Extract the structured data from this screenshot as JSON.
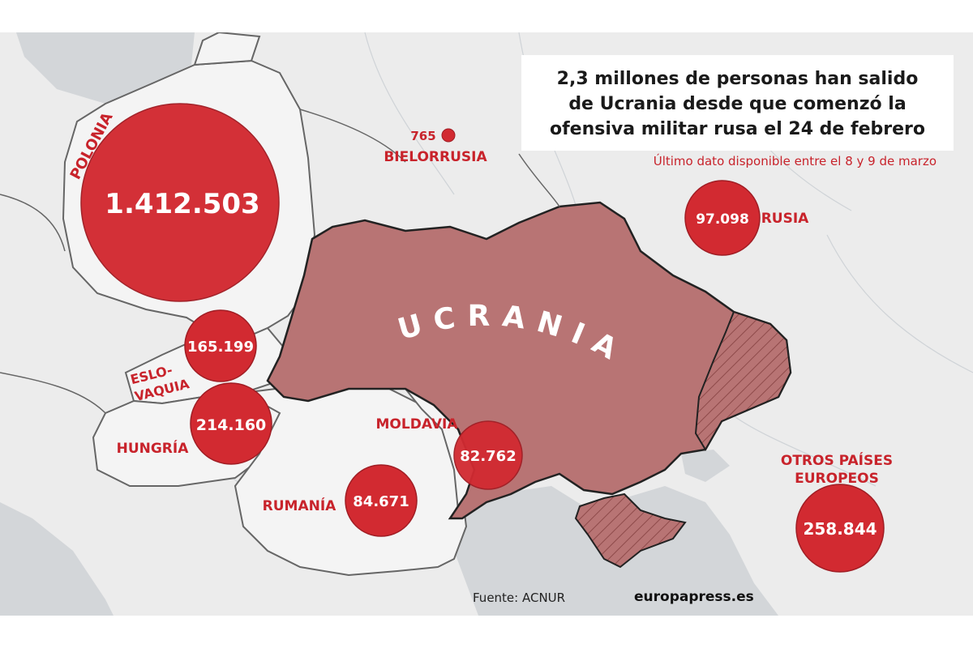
{
  "title": "2,3 millones de personas han salido de Ucrania desde que comenzó la ofensiva militar rusa el 24 de febrero",
  "title_lines": [
    "2,3 millones de personas han salido",
    "de Ucrania desde que comenzó la",
    "ofensiva militar rusa el 24 de febrero"
  ],
  "subtitle": "Último dato disponible entre el 8 y 9 de marzo",
  "source": "Fuente: ACNUR",
  "brand": "europapress.es",
  "center_label": "UCRANIA",
  "colors": {
    "accent": "#c8232b",
    "ukraine_fill": "#b87474",
    "land": "#eeeeee",
    "neighbor_land": "#f6f6f6",
    "water": "#d3d6d9"
  },
  "countries": [
    {
      "id": "polonia",
      "name": "POLONIA",
      "refugees": 1412503,
      "value_label": "1.412.503"
    },
    {
      "id": "eslovaquia",
      "name_lines": [
        "ESLO-",
        "VAQUIA"
      ],
      "refugees": 165199,
      "value_label": "165.199"
    },
    {
      "id": "hungria",
      "name": "HUNGRÍA",
      "refugees": 214160,
      "value_label": "214.160"
    },
    {
      "id": "rumania",
      "name": "RUMANÍA",
      "refugees": 84671,
      "value_label": "84.671"
    },
    {
      "id": "moldavia",
      "name": "MOLDAVIA",
      "refugees": 82762,
      "value_label": "82.762"
    },
    {
      "id": "bielorrusia",
      "name": "BIELORRUSIA",
      "refugees": 765,
      "value_label": "765"
    },
    {
      "id": "rusia",
      "name": "RUSIA",
      "refugees": 97098,
      "value_label": "97.098"
    },
    {
      "id": "otros",
      "name_lines": [
        "OTROS PAÍSES",
        "EUROPEOS"
      ],
      "refugees": 258844,
      "value_label": "258.844"
    }
  ]
}
